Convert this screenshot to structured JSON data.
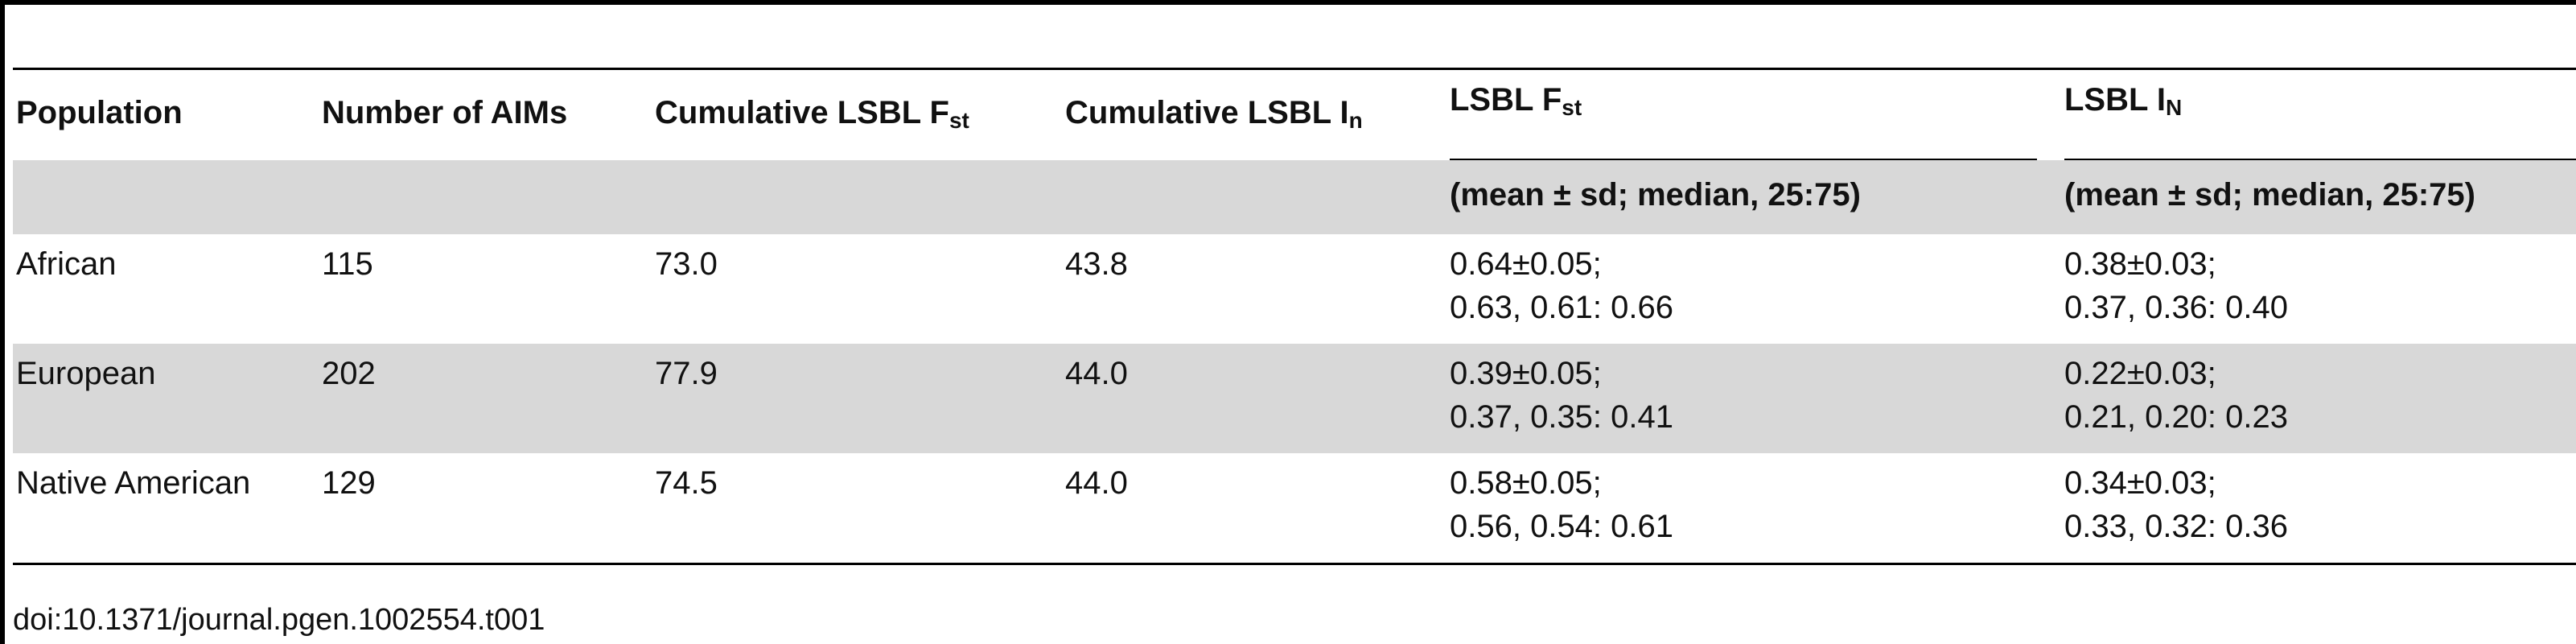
{
  "table": {
    "header": {
      "population": "Population",
      "number_of_aims": "Number of AIMs",
      "cumulative_fst_main": "Cumulative LSBL F",
      "cumulative_fst_sub": "st",
      "cumulative_in_main": "Cumulative LSBL I",
      "cumulative_in_sub": "n",
      "lsbl_fst_main": "LSBL F",
      "lsbl_fst_sub": "st",
      "lsbl_in_main": "LSBL I",
      "lsbl_in_sub": "N",
      "lsbl_fst_stat": "(mean ± sd; median, 25:75)",
      "lsbl_in_stat": "(mean ± sd; median, 25:75)"
    },
    "rows": [
      {
        "population": "African",
        "number_of_aims": "115",
        "cumulative_fst": "73.0",
        "cumulative_in": "43.8",
        "fst_line1": "0.64±0.05;",
        "fst_line2": "0.63, 0.61: 0.66",
        "in_line1": "0.38±0.03;",
        "in_line2": "0.37, 0.36: 0.40"
      },
      {
        "population": "European",
        "number_of_aims": "202",
        "cumulative_fst": "77.9",
        "cumulative_in": "44.0",
        "fst_line1": "0.39±0.05;",
        "fst_line2": "0.37, 0.35: 0.41",
        "in_line1": "0.22±0.03;",
        "in_line2": "0.21, 0.20: 0.23"
      },
      {
        "population": "Native American",
        "number_of_aims": "129",
        "cumulative_fst": "74.5",
        "cumulative_in": "44.0",
        "fst_line1": "0.58±0.05;",
        "fst_line2": "0.56, 0.54: 0.61",
        "in_line1": "0.34±0.03;",
        "in_line2": "0.33, 0.32: 0.36"
      }
    ]
  },
  "doi": "doi:10.1371/journal.pgen.1002554.t001",
  "colors": {
    "shade": "#d8d8d8",
    "rule": "#000000"
  }
}
